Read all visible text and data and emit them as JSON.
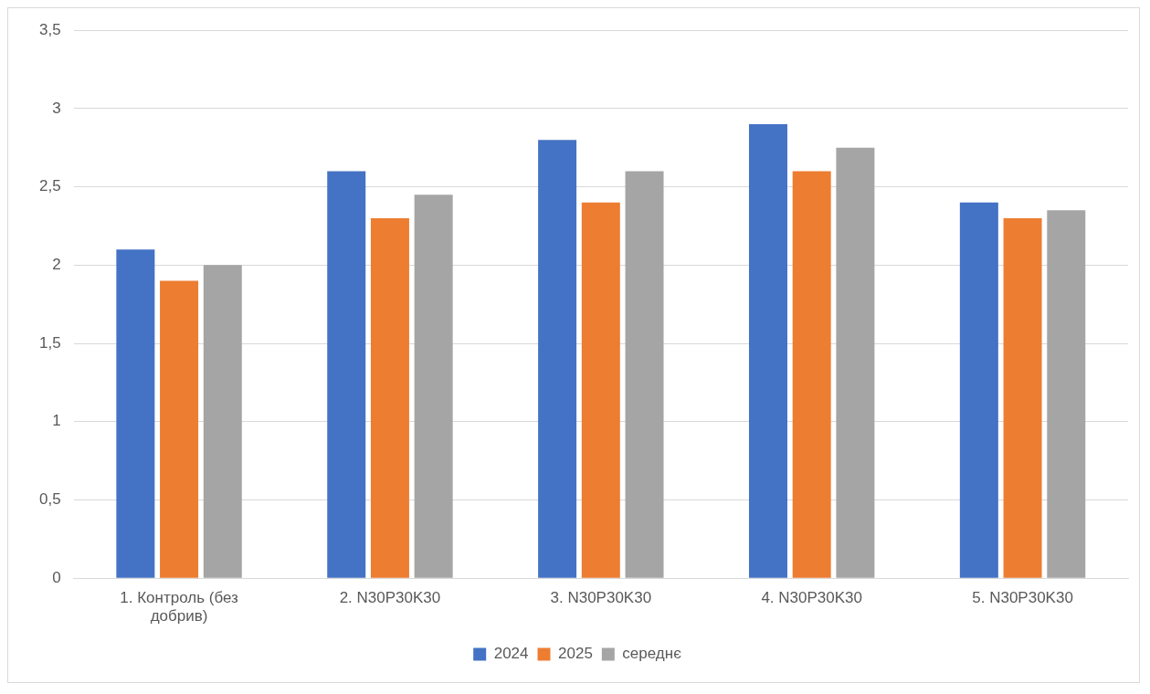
{
  "chart_data": {
    "type": "bar",
    "categories": [
      "1. Контроль (без добрив)",
      "2. N30P30K30",
      "3. N30P30K30",
      "4. N30P30K30",
      "5. N30P30K30"
    ],
    "series": [
      {
        "name": "2024",
        "color": "#4472c4",
        "values": [
          2.1,
          2.6,
          2.8,
          2.9,
          2.4
        ]
      },
      {
        "name": "2025",
        "color": "#ed7d31",
        "values": [
          1.9,
          2.3,
          2.4,
          2.6,
          2.3
        ]
      },
      {
        "name": "середнє",
        "color": "#a5a5a5",
        "values": [
          2.0,
          2.45,
          2.6,
          2.75,
          2.35
        ]
      }
    ],
    "ylim": [
      0,
      3.5
    ],
    "yticks": [
      0,
      {
        "value": 0.5,
        "label": "0,5"
      },
      1,
      {
        "value": 1.5,
        "label": "1,5"
      },
      2,
      {
        "value": 2.5,
        "label": "2,5"
      },
      3,
      {
        "value": 3.5,
        "label": "3,5"
      }
    ],
    "grid": "y",
    "legend": "bottom"
  }
}
